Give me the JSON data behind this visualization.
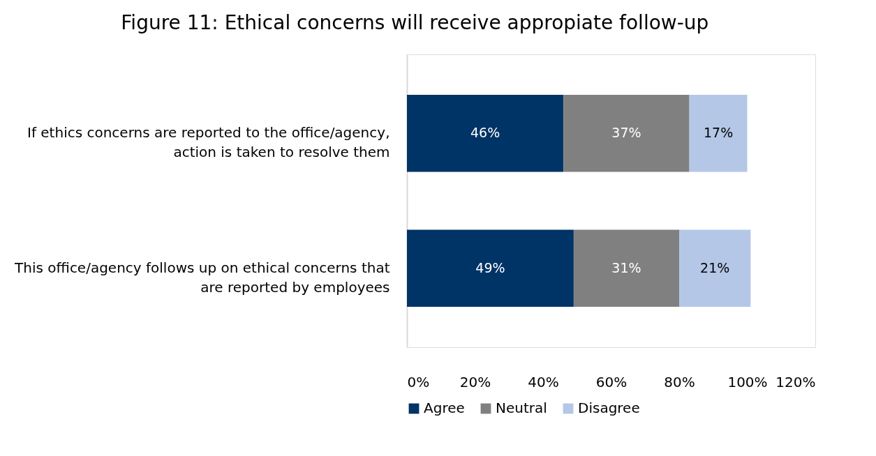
{
  "chart_data": {
    "type": "bar",
    "orientation": "horizontal",
    "stacked": true,
    "title": "Figure 11: Ethical concerns will receive appropiate follow-up",
    "categories": [
      "If ethics concerns are reported to the office/agency, action is taken to resolve them",
      "This office/agency follows up on ethical concerns that are reported by employees"
    ],
    "series": [
      {
        "name": "Agree",
        "color": "#003366",
        "values": [
          46,
          49
        ],
        "value_labels": [
          "46%",
          "49%"
        ]
      },
      {
        "name": "Neutral",
        "color": "#808080",
        "values": [
          37,
          31
        ],
        "value_labels": [
          "37%",
          "31%"
        ]
      },
      {
        "name": "Disagree",
        "color": "#b4c7e7",
        "values": [
          17,
          21
        ],
        "value_labels": [
          "17%",
          "21%"
        ]
      }
    ],
    "xlim": [
      0,
      120
    ],
    "xticks": [
      {
        "value": 0,
        "label": "0%"
      },
      {
        "value": 20,
        "label": "20%"
      },
      {
        "value": 40,
        "label": "40%"
      },
      {
        "value": 60,
        "label": "60%"
      },
      {
        "value": 80,
        "label": "80%"
      },
      {
        "value": 100,
        "label": "100%"
      },
      {
        "value": 120,
        "label": "120%"
      }
    ],
    "grid": false,
    "legend": "bottom"
  }
}
